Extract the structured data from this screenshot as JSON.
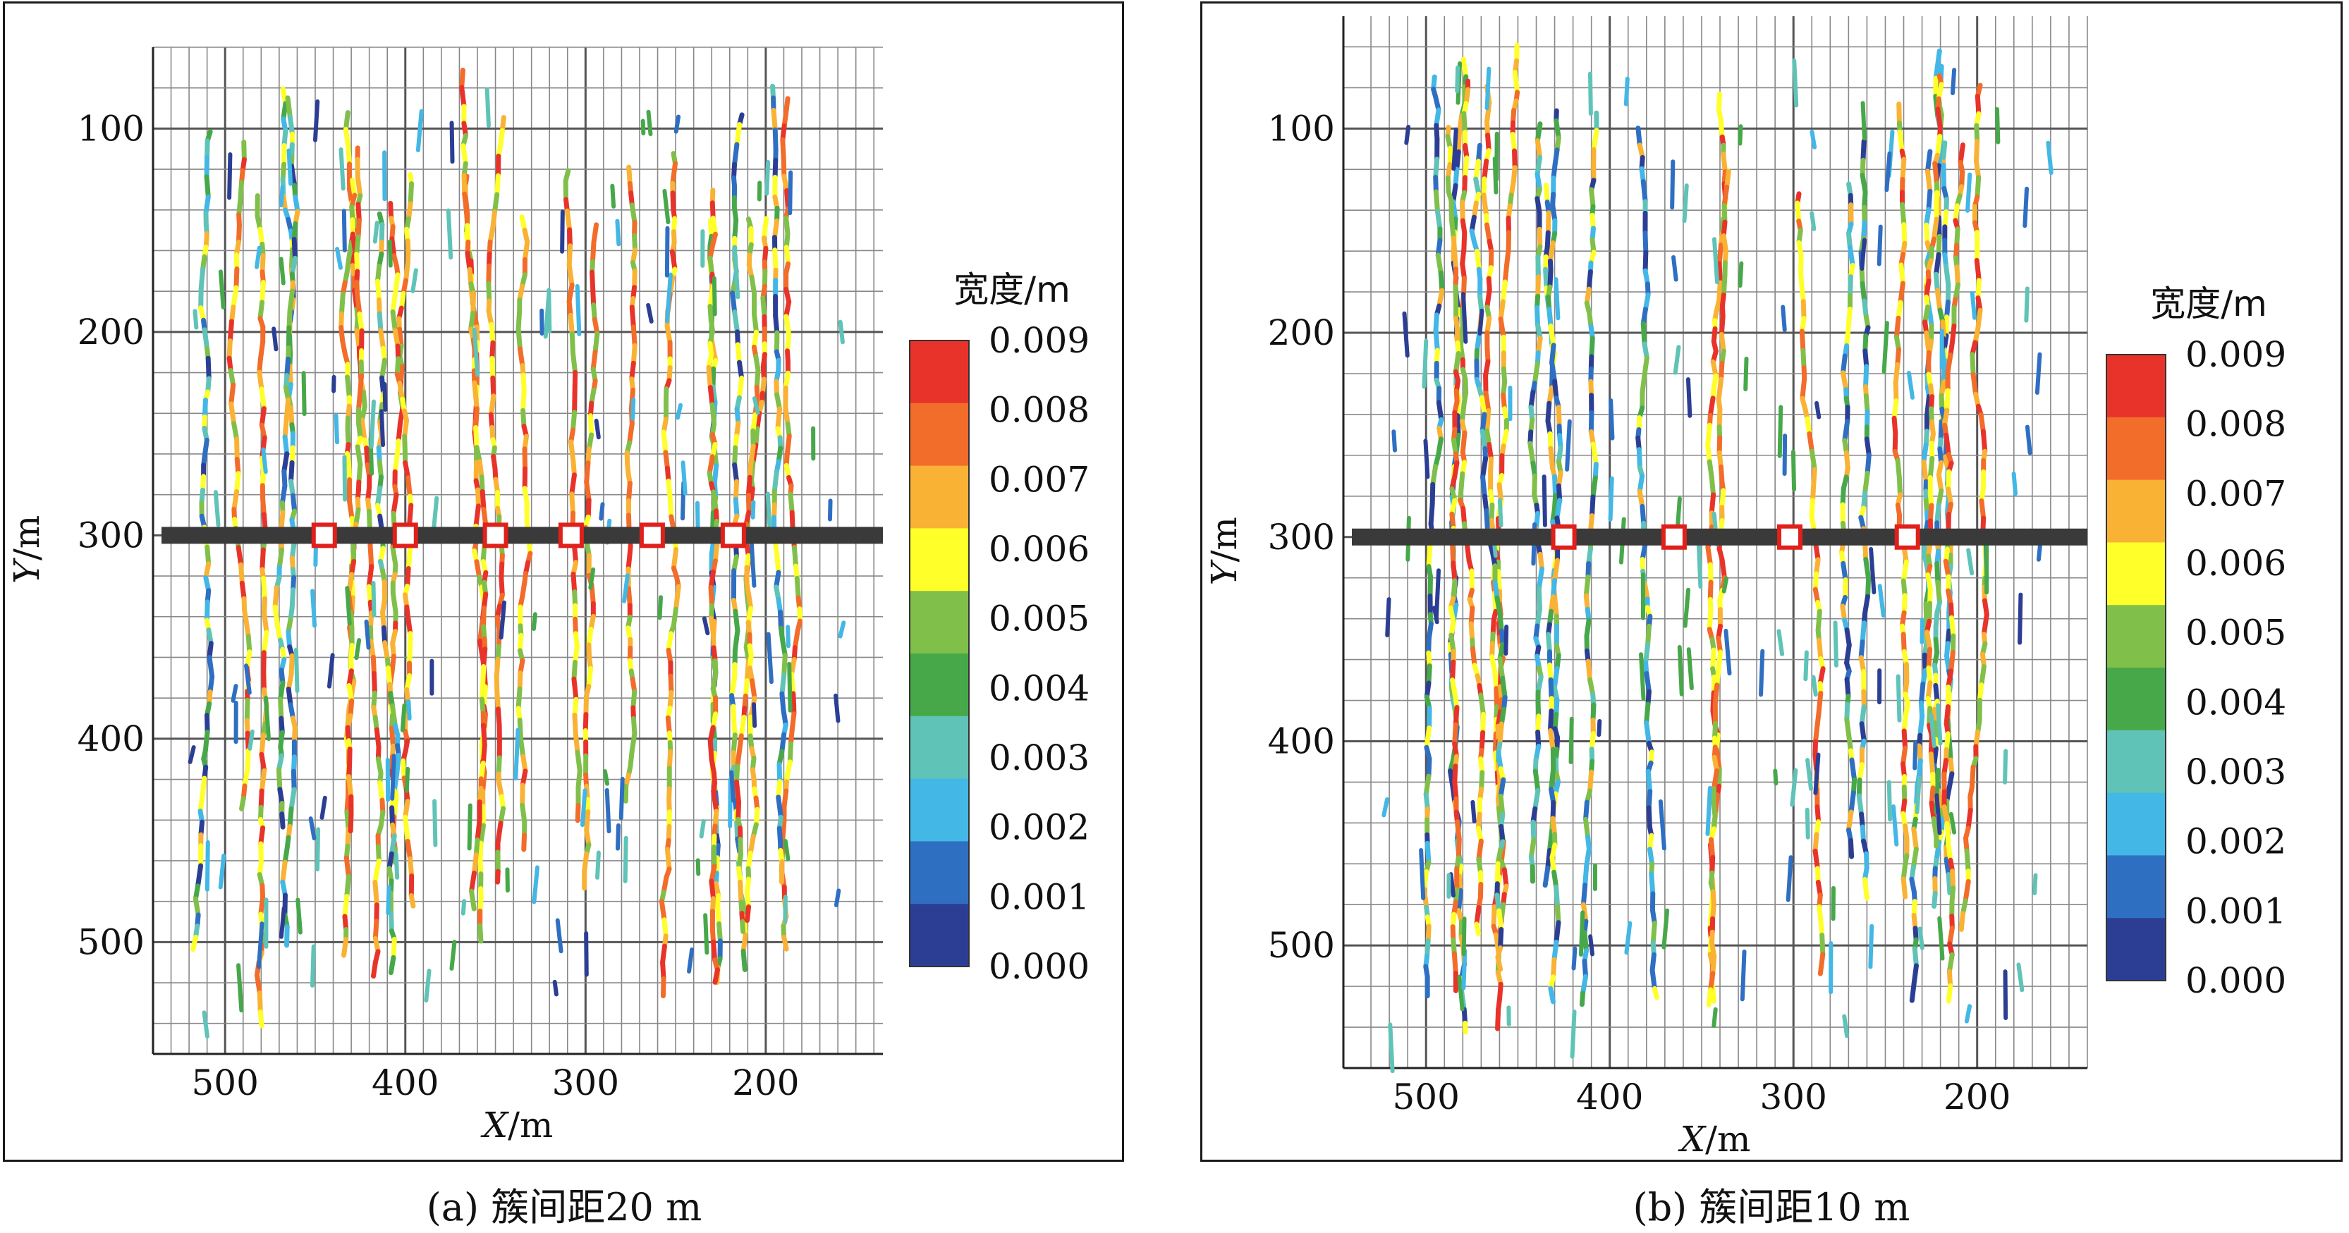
{
  "panels": [
    {
      "id": "a",
      "caption": "(a) 簇间距20 m",
      "xlabel_var": "X",
      "xlabel_unit": "/m",
      "ylabel_var": "Y",
      "ylabel_unit": "/m",
      "x_ticks": [
        "500",
        "400",
        "300",
        "200"
      ],
      "y_ticks": [
        "100",
        "200",
        "300",
        "400",
        "500"
      ],
      "x_range": [
        540,
        135
      ],
      "y_range": [
        60,
        555
      ],
      "wellbore_y": 300,
      "cluster_x": [
        445,
        400,
        350,
        308,
        263,
        218
      ],
      "colorbar_title": "宽度/m",
      "colorbar_ticks": [
        "0.009",
        "0.008",
        "0.007",
        "0.006",
        "0.005",
        "0.004",
        "0.003",
        "0.002",
        "0.001",
        "0.000"
      ]
    },
    {
      "id": "b",
      "caption": "(b) 簇间距10 m",
      "xlabel_var": "X",
      "xlabel_unit": "/m",
      "ylabel_var": "Y",
      "ylabel_unit": "/m",
      "x_ticks": [
        "500",
        "400",
        "300",
        "200"
      ],
      "y_ticks": [
        "100",
        "200",
        "300",
        "400",
        "500"
      ],
      "x_range": [
        545,
        140
      ],
      "y_range": [
        45,
        560
      ],
      "wellbore_y": 300,
      "cluster_x": [
        425,
        365,
        302,
        238
      ],
      "colorbar_title": "宽度/m",
      "colorbar_ticks": [
        "0.009",
        "0.008",
        "0.007",
        "0.006",
        "0.005",
        "0.004",
        "0.003",
        "0.002",
        "0.001",
        "0.000"
      ]
    }
  ],
  "colors": {
    "colormap": [
      "#2c3e94",
      "#2f6fc2",
      "#43b7e6",
      "#5fc3b8",
      "#47a84a",
      "#80c04a",
      "#ffff2a",
      "#f9b234",
      "#f26c2a",
      "#e8332a"
    ],
    "grid": "#888888",
    "wellbore": "#3a3a3a",
    "cluster_marker": "#e0201b"
  }
}
